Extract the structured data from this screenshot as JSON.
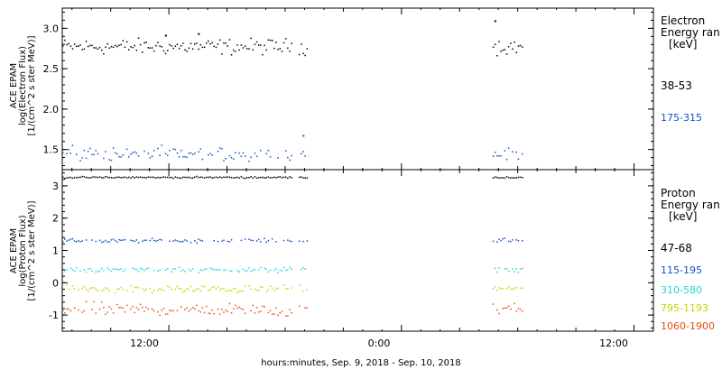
{
  "figure": {
    "xlabel": "hours:minutes, Sep.  9, 2018 - Sep. 10, 2018",
    "x_ticks": [
      "12:00",
      "0:00",
      "12:00"
    ]
  },
  "colors": {
    "black": "#000000",
    "blue": "#1450c8",
    "cyan": "#22d4d4",
    "yellow": "#c8d400",
    "orange": "#e8500a"
  },
  "chart_data": [
    {
      "type": "scatter",
      "panel": "electron",
      "ylabel_lines": [
        "ACE EPAM",
        "log(Electron Flux)",
        "[1/(cm^2 s ster MeV)]"
      ],
      "ylim": [
        1.25,
        3.25
      ],
      "y_ticks": [
        "1.5",
        "2.0",
        "2.5",
        "3.0"
      ],
      "x_unit": "hours since Sep. 9, 2018 00:00",
      "xlim": [
        6.5,
        37.0
      ],
      "data_gaps": [
        [
          18.4,
          18.6
        ],
        [
          19.2,
          28.7
        ],
        [
          30.3,
          37.0
        ]
      ],
      "legend": {
        "title_lines": [
          "Electron",
          "Energy ran",
          "[keV]"
        ],
        "entries": [
          "38-53",
          "175-315"
        ]
      },
      "series": [
        {
          "name": "38-53",
          "color_key": "black",
          "mean": 2.78,
          "spread": 0.06,
          "extra_points": [
            {
              "x": 11.8,
              "y": 2.92
            },
            {
              "x": 13.5,
              "y": 2.94
            },
            {
              "x": 28.8,
              "y": 3.1
            }
          ]
        },
        {
          "name": "175-315",
          "color_key": "blue",
          "mean": 1.45,
          "spread": 0.05,
          "extra_points": [
            {
              "x": 18.9,
              "y": 1.68
            }
          ]
        }
      ]
    },
    {
      "type": "scatter",
      "panel": "proton",
      "ylabel_lines": [
        "ACE EPAM",
        "log(Proton Flux)",
        "[1/(cm^2 s ster MeV)]"
      ],
      "ylim": [
        -1.5,
        3.5
      ],
      "y_ticks": [
        "-1",
        "0",
        "1",
        "2",
        "3"
      ],
      "x_unit": "hours since Sep. 9, 2018 00:00",
      "xlim": [
        6.5,
        37.0
      ],
      "data_gaps": [
        [
          18.4,
          18.6
        ],
        [
          19.2,
          28.7
        ],
        [
          30.3,
          37.0
        ]
      ],
      "legend": {
        "title_lines": [
          "Proton",
          "Energy ran",
          "[keV]"
        ],
        "entries": [
          "47-68",
          "115-195",
          "310-580",
          "795-1193",
          "1060-1900"
        ]
      },
      "series": [
        {
          "name": "47-68",
          "color_key": "black",
          "mean": 3.28,
          "spread": 0.015
        },
        {
          "name": "115-195",
          "color_key": "blue",
          "mean": 1.32,
          "spread": 0.04
        },
        {
          "name": "310-580",
          "color_key": "cyan",
          "mean": 0.42,
          "spread": 0.05
        },
        {
          "name": "795-1193",
          "color_key": "yellow",
          "mean": -0.18,
          "spread": 0.07
        },
        {
          "name": "1060-1900",
          "color_key": "orange",
          "mean": -0.8,
          "spread": 0.12
        }
      ]
    }
  ]
}
